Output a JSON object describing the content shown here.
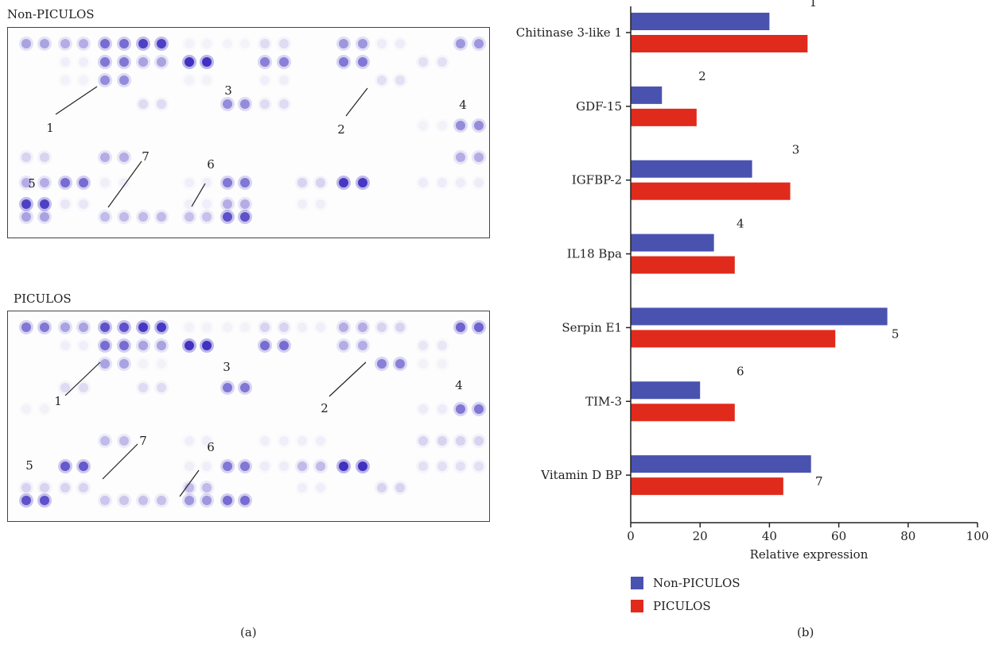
{
  "panel_a": {
    "top_title": "Non-PICULOS",
    "bottom_title": "PICULOS",
    "caption": "(a)",
    "spot_labels": [
      "1",
      "2",
      "3",
      "4",
      "5",
      "6",
      "7"
    ]
  },
  "panel_b": {
    "caption": "(b)"
  },
  "chart_data": {
    "type": "bar",
    "orientation": "horizontal",
    "categories": [
      "Chitinase 3-like 1",
      "GDF-15",
      "IGFBP-2",
      "IL18 Bpa",
      "Serpin E1",
      "TIM-3",
      "Vitamin D BP"
    ],
    "series": [
      {
        "name": "Non-PICULOS",
        "color": "#4a52b0",
        "values": [
          40,
          9,
          35,
          24,
          74,
          20,
          52
        ]
      },
      {
        "name": "PICULOS",
        "color": "#e02b1c",
        "values": [
          51,
          19,
          46,
          30,
          59,
          30,
          44
        ]
      }
    ],
    "bar_labels": [
      "1",
      "2",
      "3",
      "4",
      "5",
      "6",
      "7"
    ],
    "xlabel": "Relative expression",
    "ylabel": "",
    "xlim": [
      0,
      100
    ],
    "xticks": [
      "0",
      "20",
      "40",
      "60",
      "80",
      "100"
    ],
    "legend_position": "bottom-left"
  }
}
